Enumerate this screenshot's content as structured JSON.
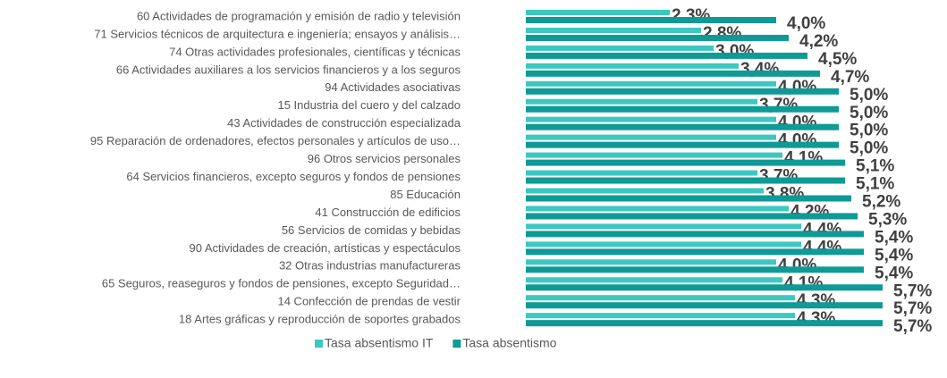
{
  "chart_data": {
    "type": "bar",
    "orientation": "horizontal",
    "categories": [
      "60 Actividades de programación y emisión de radio y televisión",
      "71 Servicios técnicos de arquitectura e ingeniería; ensayos y análisis…",
      "74 Otras actividades profesionales, científicas y técnicas",
      "66 Actividades auxiliares a los servicios financieros y a los seguros",
      "94 Actividades asociativas",
      "15 Industria del cuero y del calzado",
      "43 Actividades de construcción especializada",
      "95 Reparación de ordenadores, efectos personales y artículos de uso…",
      "96 Otros servicios personales",
      "64 Servicios financieros, excepto seguros y fondos de pensiones",
      "85 Educación",
      "41 Construcción de edificios",
      "56 Servicios de comidas y bebidas",
      "90 Actividades de creación, artísticas y espectáculos",
      "32 Otras industrias manufactureras",
      "65 Seguros, reaseguros y fondos de pensiones, excepto Seguridad…",
      "14 Confección de prendas de vestir",
      "18 Artes gráficas y reproducción de soportes grabados"
    ],
    "series": [
      {
        "name": "Tasa absentismo IT",
        "color": "#3cc8c0",
        "values": [
          2.3,
          2.8,
          3.0,
          3.4,
          4.0,
          3.7,
          4.0,
          4.0,
          4.1,
          3.7,
          3.8,
          4.2,
          4.4,
          4.4,
          4.0,
          4.1,
          4.3,
          4.3
        ],
        "value_labels": [
          "2,3%",
          "2,8%",
          "3,0%",
          "3,4%",
          "4,0%",
          "3,7%",
          "4,0%",
          "4,0%",
          "4,1%",
          "3,7%",
          "3,8%",
          "4,2%",
          "4,4%",
          "4,4%",
          "4,0%",
          "4,1%",
          "4,3%",
          "4,3%"
        ]
      },
      {
        "name": "Tasa absentismo",
        "color": "#0f9a96",
        "values": [
          4.0,
          4.2,
          4.5,
          4.7,
          5.0,
          5.0,
          5.0,
          5.0,
          5.1,
          5.1,
          5.2,
          5.3,
          5.4,
          5.4,
          5.4,
          5.7,
          5.7,
          5.7
        ],
        "value_labels": [
          "4,0%",
          "4,2%",
          "4,5%",
          "4,7%",
          "5,0%",
          "5,0%",
          "5,0%",
          "5,0%",
          "5,1%",
          "5,1%",
          "5,2%",
          "5,3%",
          "5,4%",
          "5,4%",
          "5,4%",
          "5,7%",
          "5,7%",
          "5,7%"
        ]
      }
    ],
    "xlim": [
      0,
      6.5
    ],
    "legend": "bottom"
  }
}
